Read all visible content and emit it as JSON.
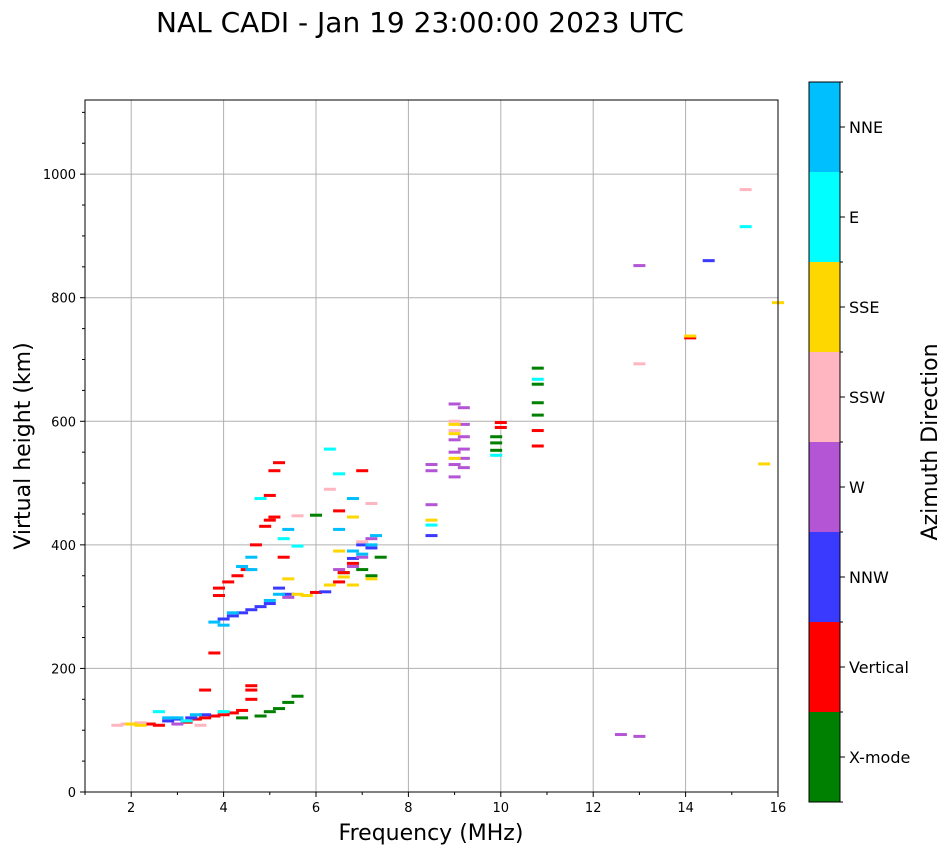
{
  "chart_data": {
    "type": "scatter",
    "title": "NAL CADI - Jan 19 23:00:00 2023 UTC",
    "xlabel": "Frequency (MHz)",
    "ylabel": "Virtual height (km)",
    "xlim": [
      1,
      16
    ],
    "ylim": [
      0,
      1120
    ],
    "xticks": [
      2,
      4,
      6,
      8,
      10,
      12,
      14,
      16
    ],
    "xtick_labels": [
      "2",
      "4",
      "6",
      "8",
      "10",
      "12",
      "14",
      "16"
    ],
    "yticks": [
      0,
      200,
      400,
      600,
      800,
      1000
    ],
    "ytick_labels": [
      "0",
      "200",
      "400",
      "600",
      "800",
      "1000"
    ],
    "grid": true,
    "colorbar": {
      "label": "Azimuth Direction",
      "categories": [
        {
          "name": "X-mode",
          "color": "#008000"
        },
        {
          "name": "Vertical",
          "color": "#ff0000"
        },
        {
          "name": "NNW",
          "color": "#3a3aff"
        },
        {
          "name": "W",
          "color": "#b455d6"
        },
        {
          "name": "SSW",
          "color": "#ffb6c1"
        },
        {
          "name": "SSE",
          "color": "#ffd700"
        },
        {
          "name": "E",
          "color": "#00ffff"
        },
        {
          "name": "NNE",
          "color": "#00bfff"
        }
      ]
    },
    "series": [
      {
        "name": "X-mode",
        "points": [
          [
            4.4,
            120
          ],
          [
            4.8,
            123
          ],
          [
            5.0,
            130
          ],
          [
            5.2,
            135
          ],
          [
            5.4,
            145
          ],
          [
            5.6,
            155
          ],
          [
            6.6,
            355
          ],
          [
            7.0,
            360
          ],
          [
            7.2,
            350
          ],
          [
            9.9,
            553
          ],
          [
            9.9,
            565
          ],
          [
            9.9,
            575
          ],
          [
            10.8,
            610
          ],
          [
            10.8,
            630
          ],
          [
            10.8,
            660
          ],
          [
            10.8,
            686
          ],
          [
            7.4,
            380
          ],
          [
            6.0,
            448
          ]
        ]
      },
      {
        "name": "Vertical",
        "points": [
          [
            2.4,
            110
          ],
          [
            2.6,
            108
          ],
          [
            3.2,
            113
          ],
          [
            3.4,
            118
          ],
          [
            3.6,
            120
          ],
          [
            3.8,
            123
          ],
          [
            4.0,
            125
          ],
          [
            4.2,
            128
          ],
          [
            4.4,
            132
          ],
          [
            4.6,
            150
          ],
          [
            4.6,
            165
          ],
          [
            4.6,
            172
          ],
          [
            3.8,
            225
          ],
          [
            3.6,
            165
          ],
          [
            3.9,
            318
          ],
          [
            3.9,
            330
          ],
          [
            4.1,
            340
          ],
          [
            4.3,
            350
          ],
          [
            4.5,
            360
          ],
          [
            4.7,
            400
          ],
          [
            4.9,
            430
          ],
          [
            5.0,
            480
          ],
          [
            5.1,
            445
          ],
          [
            5.1,
            520
          ],
          [
            5.2,
            533
          ],
          [
            5.3,
            380
          ],
          [
            6.0,
            323
          ],
          [
            6.5,
            340
          ],
          [
            6.6,
            355
          ],
          [
            6.8,
            370
          ],
          [
            7.0,
            520
          ],
          [
            6.5,
            455
          ],
          [
            14.1,
            735
          ],
          [
            10.0,
            590
          ],
          [
            10.0,
            598
          ],
          [
            10.8,
            585
          ],
          [
            10.8,
            560
          ],
          [
            5.0,
            440
          ]
        ]
      },
      {
        "name": "NNW",
        "points": [
          [
            2.8,
            115
          ],
          [
            3.0,
            118
          ],
          [
            3.3,
            120
          ],
          [
            3.6,
            125
          ],
          [
            4.0,
            280
          ],
          [
            4.2,
            285
          ],
          [
            4.4,
            290
          ],
          [
            4.6,
            295
          ],
          [
            4.8,
            300
          ],
          [
            5.0,
            305
          ],
          [
            5.2,
            330
          ],
          [
            5.4,
            320
          ],
          [
            6.8,
            378
          ],
          [
            7.0,
            400
          ],
          [
            7.2,
            395
          ],
          [
            8.5,
            415
          ],
          [
            14.5,
            860
          ],
          [
            6.2,
            324
          ]
        ]
      },
      {
        "name": "W",
        "points": [
          [
            3.0,
            110
          ],
          [
            6.5,
            360
          ],
          [
            6.8,
            365
          ],
          [
            7.0,
            380
          ],
          [
            7.2,
            410
          ],
          [
            8.5,
            465
          ],
          [
            8.5,
            520
          ],
          [
            8.5,
            530
          ],
          [
            9.0,
            510
          ],
          [
            9.0,
            530
          ],
          [
            9.0,
            550
          ],
          [
            9.0,
            570
          ],
          [
            9.2,
            525
          ],
          [
            9.2,
            540
          ],
          [
            9.2,
            555
          ],
          [
            9.2,
            575
          ],
          [
            9.2,
            595
          ],
          [
            9.2,
            622
          ],
          [
            9.0,
            628
          ],
          [
            12.6,
            93
          ],
          [
            13.0,
            90
          ],
          [
            5.4,
            315
          ],
          [
            13.0,
            852
          ]
        ]
      },
      {
        "name": "SSW",
        "points": [
          [
            1.7,
            108
          ],
          [
            1.9,
            110
          ],
          [
            2.2,
            112
          ],
          [
            3.5,
            108
          ],
          [
            5.6,
            447
          ],
          [
            6.3,
            490
          ],
          [
            7.2,
            467
          ],
          [
            13.0,
            693
          ],
          [
            15.3,
            975
          ],
          [
            9.0,
            585
          ],
          [
            9.0,
            600
          ],
          [
            7.0,
            405
          ]
        ]
      },
      {
        "name": "SSE",
        "points": [
          [
            2.0,
            110
          ],
          [
            2.2,
            108
          ],
          [
            5.4,
            345
          ],
          [
            5.6,
            320
          ],
          [
            5.8,
            318
          ],
          [
            6.3,
            335
          ],
          [
            6.6,
            348
          ],
          [
            6.8,
            335
          ],
          [
            7.2,
            345
          ],
          [
            8.5,
            440
          ],
          [
            9.0,
            540
          ],
          [
            9.0,
            580
          ],
          [
            9.0,
            595
          ],
          [
            15.7,
            531
          ],
          [
            16.0,
            792
          ],
          [
            14.1,
            738
          ],
          [
            6.8,
            445
          ],
          [
            6.5,
            390
          ]
        ]
      },
      {
        "name": "E",
        "points": [
          [
            2.6,
            130
          ],
          [
            3.2,
            115
          ],
          [
            4.0,
            130
          ],
          [
            4.8,
            475
          ],
          [
            5.3,
            410
          ],
          [
            6.3,
            555
          ],
          [
            8.5,
            432
          ],
          [
            15.3,
            915
          ],
          [
            10.8,
            668
          ],
          [
            9.9,
            545
          ],
          [
            5.6,
            398
          ],
          [
            6.5,
            515
          ]
        ]
      },
      {
        "name": "NNE",
        "points": [
          [
            2.8,
            120
          ],
          [
            3.0,
            120
          ],
          [
            3.4,
            125
          ],
          [
            3.8,
            275
          ],
          [
            4.0,
            270
          ],
          [
            4.2,
            290
          ],
          [
            4.4,
            365
          ],
          [
            4.6,
            380
          ],
          [
            5.0,
            310
          ],
          [
            5.2,
            320
          ],
          [
            5.4,
            425
          ],
          [
            6.5,
            425
          ],
          [
            6.8,
            390
          ],
          [
            7.0,
            385
          ],
          [
            7.3,
            415
          ],
          [
            7.2,
            400
          ],
          [
            6.8,
            475
          ],
          [
            4.6,
            360
          ]
        ]
      }
    ]
  }
}
